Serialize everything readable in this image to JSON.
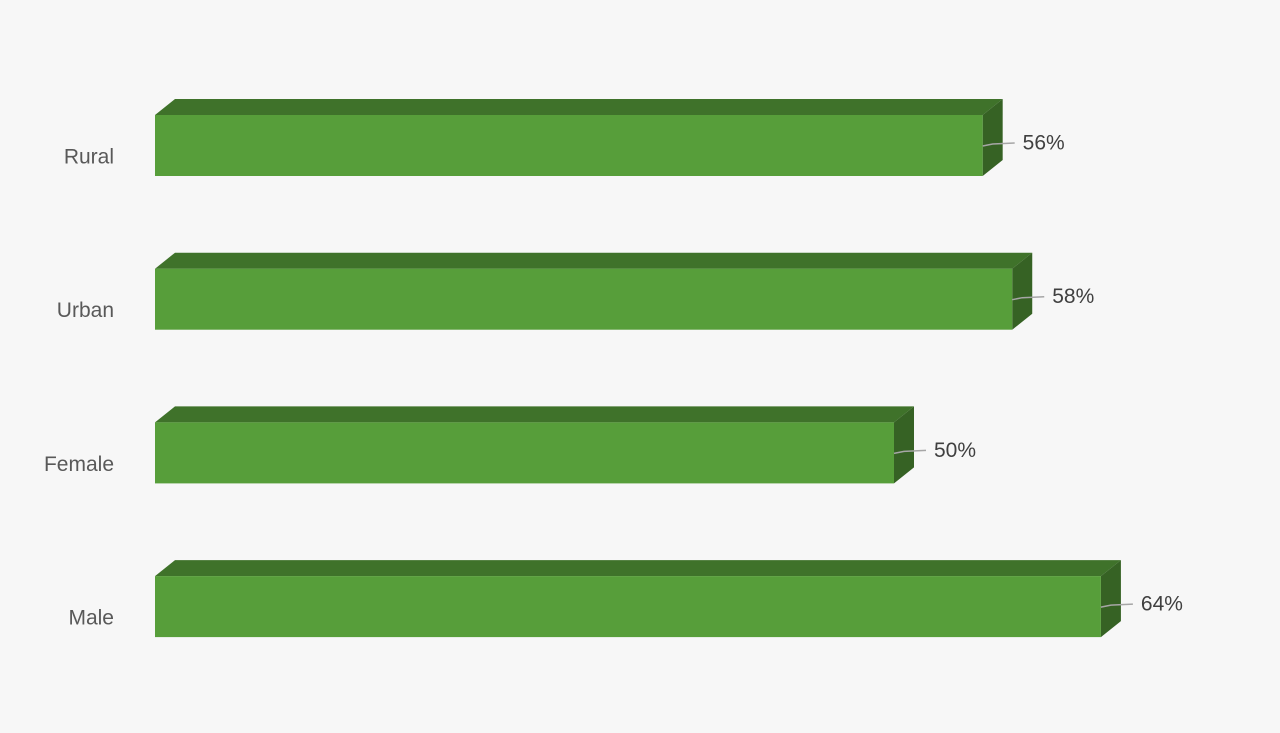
{
  "chart_data": {
    "type": "bar",
    "orientation": "horizontal",
    "categories": [
      "Rural",
      "Urban",
      "Female",
      "Male"
    ],
    "values": [
      56,
      58,
      50,
      64
    ],
    "value_labels": [
      "56%",
      "58%",
      "50%",
      "64%"
    ],
    "color": "#579e3a"
  }
}
